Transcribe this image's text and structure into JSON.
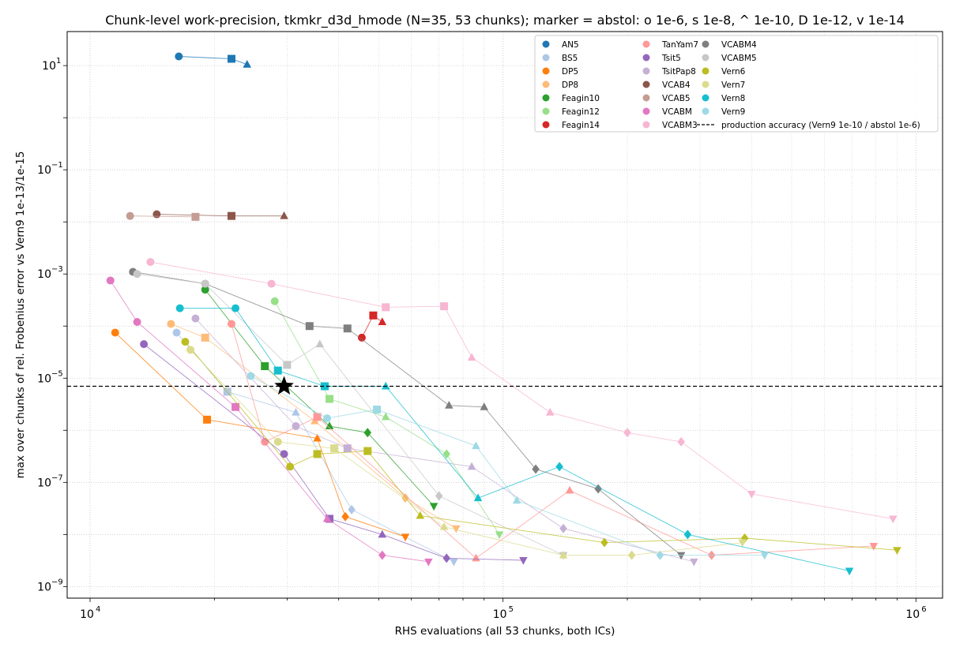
{
  "chart_data": {
    "type": "scatter",
    "title": "Chunk-level work-precision, tkmkr_d3d_hmode (N=35, 53 chunks); marker = abstol: o 1e-6, s 1e-8, ^ 1e-10, D 1e-12, v 1e-14",
    "xlabel": "RHS evaluations (all 53 chunks, both ICs)",
    "ylabel": "max over chunks of rel. Frobenius error vs Vern9 1e-13/1e-15",
    "xscale": "log",
    "yscale": "log",
    "xlim": [
      8800,
      1160000
    ],
    "ylim": [
      6e-10,
      45
    ],
    "xticks": [
      {
        "base": "10",
        "exp": "4",
        "value": 10000
      },
      {
        "base": "10",
        "exp": "5",
        "value": 100000
      },
      {
        "base": "10",
        "exp": "6",
        "value": 1000000
      }
    ],
    "yticks": [
      {
        "base": "10",
        "exp": "1",
        "value": 10
      },
      {
        "base": "10",
        "exp": "−1",
        "value": 0.1
      },
      {
        "base": "10",
        "exp": "−3",
        "value": 0.001
      },
      {
        "base": "10",
        "exp": "−5",
        "value": 1e-05
      },
      {
        "base": "10",
        "exp": "−7",
        "value": 1e-07
      },
      {
        "base": "10",
        "exp": "−9",
        "value": 1e-09
      }
    ],
    "grid": true,
    "legend_position": "top-right",
    "reference_line": {
      "label": "production accuracy (Vern9 1e-10 / abstol 1e-6)",
      "y": 7e-06,
      "style": "dashed",
      "color": "#000000"
    },
    "highlight_point": {
      "x": 29500,
      "y": 7e-06,
      "marker": "star",
      "color": "#000000"
    },
    "marker_legend": [
      "o",
      "s",
      "^",
      "D",
      "v"
    ],
    "series": [
      {
        "name": "AN5",
        "color": "#1f77b4",
        "points": [
          [
            16400,
            15
          ],
          [
            22000,
            13.5
          ],
          [
            24000,
            10.5
          ]
        ]
      },
      {
        "name": "BS5",
        "color": "#aec7e8",
        "points": [
          [
            16200,
            7.5e-05
          ],
          [
            21500,
            5.5e-06
          ],
          [
            31500,
            2.2e-06
          ],
          [
            43000,
            3e-08
          ],
          [
            76000,
            3e-09
          ]
        ]
      },
      {
        "name": "DP5",
        "color": "#ff7f0e",
        "points": [
          [
            11500,
            7.5e-05
          ],
          [
            19200,
            1.6e-06
          ],
          [
            35500,
            7e-07
          ],
          [
            41500,
            2.2e-08
          ],
          [
            58000,
            9e-09
          ]
        ]
      },
      {
        "name": "DP8",
        "color": "#ffbb78",
        "points": [
          [
            15700,
            0.00011
          ],
          [
            19000,
            6e-05
          ],
          [
            35000,
            1.5e-06
          ],
          [
            58000,
            5e-08
          ],
          [
            77000,
            1.3e-08
          ]
        ]
      },
      {
        "name": "Feagin10",
        "color": "#2ca02c",
        "points": [
          [
            19000,
            0.0005
          ],
          [
            26500,
            1.7e-05
          ],
          [
            38000,
            1.2e-06
          ],
          [
            47000,
            9e-07
          ],
          [
            68000,
            3.5e-08
          ]
        ]
      },
      {
        "name": "Feagin12",
        "color": "#98df8a",
        "points": [
          [
            28000,
            0.0003
          ],
          [
            38000,
            4e-06
          ],
          [
            52000,
            1.8e-06
          ],
          [
            73000,
            3.5e-07
          ],
          [
            98000,
            1e-08
          ]
        ]
      },
      {
        "name": "Feagin14",
        "color": "#d62728",
        "points": [
          [
            45500,
            6e-05
          ],
          [
            48500,
            0.00016
          ],
          [
            51000,
            0.00012
          ]
        ]
      },
      {
        "name": "TanYam7",
        "color": "#ff9896",
        "points": [
          [
            22000,
            0.00011
          ],
          [
            26500,
            6e-07
          ],
          [
            35500,
            1.8e-06
          ],
          [
            86000,
            3.5e-09
          ],
          [
            145000,
            7e-08
          ],
          [
            320000,
            4e-09
          ],
          [
            790000,
            6e-09
          ]
        ]
      },
      {
        "name": "Tsit5",
        "color": "#9467bd",
        "points": [
          [
            13500,
            4.5e-05
          ],
          [
            29500,
            3.5e-07
          ],
          [
            38000,
            2e-08
          ],
          [
            51000,
            1e-08
          ],
          [
            73000,
            3.5e-09
          ],
          [
            112000,
            3.2e-09
          ]
        ]
      },
      {
        "name": "TsitPap8",
        "color": "#c5b0d5",
        "points": [
          [
            18000,
            0.00014
          ],
          [
            31500,
            1.2e-06
          ],
          [
            42000,
            4.5e-07
          ],
          [
            84000,
            2e-07
          ],
          [
            140000,
            1.3e-08
          ],
          [
            290000,
            3e-09
          ]
        ]
      },
      {
        "name": "VCAB4",
        "color": "#8c564b",
        "points": [
          [
            14500,
            0.014
          ],
          [
            22000,
            0.013
          ],
          [
            29500,
            0.013
          ]
        ]
      },
      {
        "name": "VCAB5",
        "color": "#c49c94",
        "points": [
          [
            12500,
            0.013
          ],
          [
            18000,
            0.0125
          ]
        ]
      },
      {
        "name": "VCABM",
        "color": "#e377c2",
        "points": [
          [
            11200,
            0.00075
          ],
          [
            13000,
            0.00012
          ],
          [
            22500,
            2.8e-06
          ],
          [
            37500,
            2e-08
          ],
          [
            51000,
            4e-09
          ],
          [
            66000,
            3e-09
          ]
        ]
      },
      {
        "name": "VCABM3",
        "color": "#f7b6d2",
        "points": [
          [
            14000,
            0.0017
          ],
          [
            27500,
            0.00065
          ],
          [
            52000,
            0.00023
          ],
          [
            72000,
            0.00024
          ],
          [
            84000,
            2.5e-05
          ],
          [
            130000,
            2.2e-06
          ],
          [
            200000,
            9e-07
          ],
          [
            270000,
            6e-07
          ],
          [
            400000,
            6e-08
          ],
          [
            880000,
            2e-08
          ]
        ]
      },
      {
        "name": "VCABM4",
        "color": "#7f7f7f",
        "points": [
          [
            12700,
            0.0011
          ],
          [
            19000,
            0.00065
          ],
          [
            34000,
            0.0001
          ],
          [
            42000,
            9e-05
          ],
          [
            74000,
            3e-06
          ],
          [
            90000,
            2.8e-06
          ],
          [
            120000,
            1.8e-07
          ],
          [
            170000,
            7.5e-08
          ],
          [
            270000,
            4e-09
          ]
        ]
      },
      {
        "name": "VCABM5",
        "color": "#c7c7c7",
        "points": [
          [
            13000,
            0.001
          ],
          [
            19000,
            0.00065
          ],
          [
            30000,
            1.8e-05
          ],
          [
            36000,
            4.5e-05
          ],
          [
            70000,
            5.5e-08
          ],
          [
            140000,
            4e-09
          ]
        ]
      },
      {
        "name": "Vern6",
        "color": "#bcbd22",
        "points": [
          [
            17000,
            5e-05
          ],
          [
            30500,
            2e-07
          ],
          [
            35500,
            3.5e-07
          ],
          [
            47000,
            4e-07
          ],
          [
            63000,
            2.3e-08
          ],
          [
            176000,
            7e-09
          ],
          [
            385000,
            8.5e-09
          ],
          [
            900000,
            5e-09
          ]
        ]
      },
      {
        "name": "Vern7",
        "color": "#dbdb8d",
        "points": [
          [
            17500,
            3.5e-05
          ],
          [
            28500,
            6e-07
          ],
          [
            39000,
            4.5e-07
          ],
          [
            72000,
            1.4e-08
          ],
          [
            140000,
            4e-09
          ],
          [
            205000,
            4e-09
          ],
          [
            380000,
            7e-09
          ]
        ]
      },
      {
        "name": "Vern8",
        "color": "#17becf",
        "points": [
          [
            16500,
            0.00022
          ],
          [
            22500,
            0.00022
          ],
          [
            28500,
            1.4e-05
          ],
          [
            37000,
            7e-06
          ],
          [
            52000,
            7e-06
          ],
          [
            87000,
            5e-08
          ],
          [
            137000,
            2e-07
          ],
          [
            280000,
            1e-08
          ],
          [
            690000,
            2e-09
          ]
        ]
      },
      {
        "name": "Vern9",
        "color": "#9edae5",
        "points": [
          [
            24500,
            1.1e-05
          ],
          [
            37500,
            1.7e-06
          ],
          [
            49500,
            2.5e-06
          ],
          [
            86000,
            5e-07
          ],
          [
            108000,
            4.5e-08
          ],
          [
            240000,
            4e-09
          ],
          [
            430000,
            4e-09
          ]
        ]
      }
    ]
  }
}
